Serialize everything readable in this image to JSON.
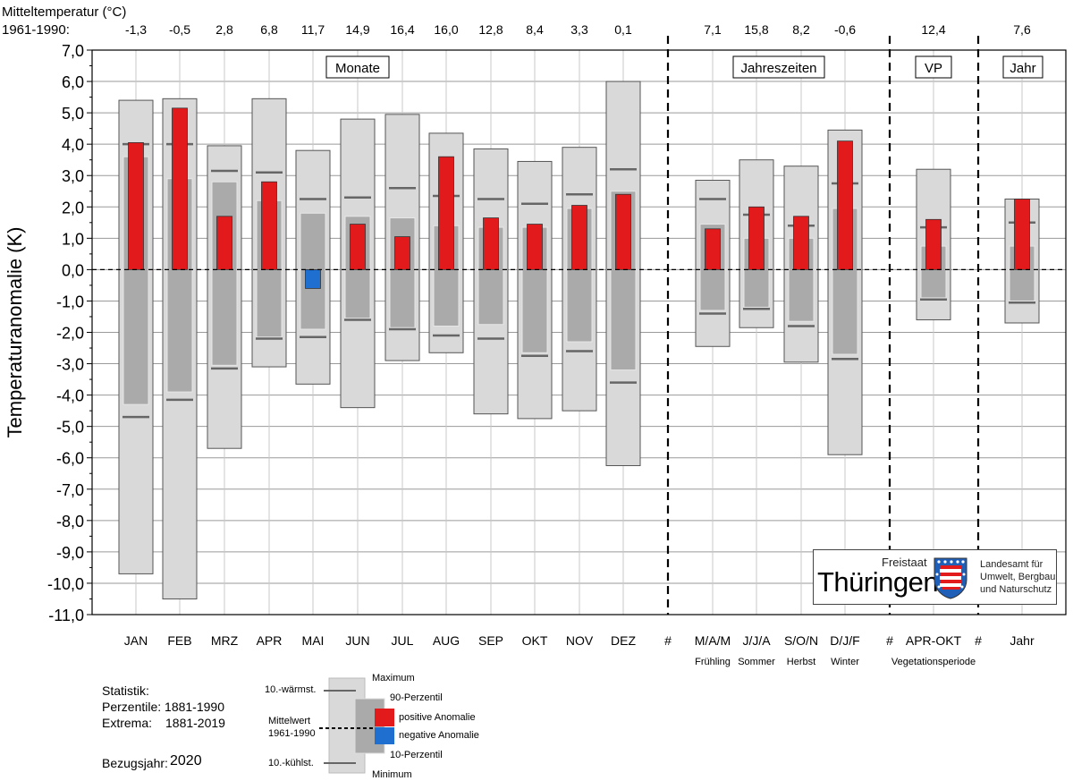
{
  "chart_data": {
    "type": "bar",
    "ylabel": "Temperaturanomalie (K)",
    "ylim": [
      -11.0,
      7.0
    ],
    "yticks": [
      "7,0",
      "6,0",
      "5,0",
      "4,0",
      "3,0",
      "2,0",
      "1,0",
      "0,0",
      "-1,0",
      "-2,0",
      "-3,0",
      "-4,0",
      "-5,0",
      "-6,0",
      "-7,0",
      "-8,0",
      "-9,0",
      "-10,0",
      "-11,0"
    ],
    "grid": true,
    "mean_header": "Mitteltemperatur (°C)",
    "mean_period": "1961-1990:",
    "sections": [
      "Monate",
      "Jahreszeiten",
      "VP",
      "Jahr"
    ],
    "separator_label": "#",
    "categories": [
      {
        "label": "JAN",
        "sub": "",
        "mean": "-1,3",
        "max": 5.4,
        "min": -9.7,
        "p90": 3.6,
        "p10": -4.3,
        "warm10": 4.0,
        "cold10": -4.7,
        "anomaly": 4.05
      },
      {
        "label": "FEB",
        "sub": "",
        "mean": "-0,5",
        "max": 5.45,
        "min": -10.5,
        "p90": 2.9,
        "p10": -3.9,
        "warm10": 4.0,
        "cold10": -4.15,
        "anomaly": 5.15
      },
      {
        "label": "MRZ",
        "sub": "",
        "mean": "2,8",
        "max": 3.95,
        "min": -5.7,
        "p90": 2.8,
        "p10": -3.05,
        "warm10": 3.15,
        "cold10": -3.15,
        "anomaly": 1.7
      },
      {
        "label": "APR",
        "sub": "",
        "mean": "6,8",
        "max": 5.45,
        "min": -3.1,
        "p90": 2.2,
        "p10": -2.15,
        "warm10": 3.1,
        "cold10": -2.2,
        "anomaly": 2.8
      },
      {
        "label": "MAI",
        "sub": "",
        "mean": "11,7",
        "max": 3.8,
        "min": -3.65,
        "p90": 1.8,
        "p10": -1.9,
        "warm10": 2.25,
        "cold10": -2.15,
        "anomaly": -0.6
      },
      {
        "label": "JUN",
        "sub": "",
        "mean": "14,9",
        "max": 4.8,
        "min": -4.4,
        "p90": 1.7,
        "p10": -1.55,
        "warm10": 2.3,
        "cold10": -1.6,
        "anomaly": 1.45
      },
      {
        "label": "JUL",
        "sub": "",
        "mean": "16,4",
        "max": 4.95,
        "min": -2.9,
        "p90": 1.65,
        "p10": -1.85,
        "warm10": 2.6,
        "cold10": -1.9,
        "anomaly": 1.05
      },
      {
        "label": "AUG",
        "sub": "",
        "mean": "16,0",
        "max": 4.35,
        "min": -2.65,
        "p90": 1.4,
        "p10": -1.8,
        "warm10": 2.35,
        "cold10": -2.1,
        "anomaly": 3.6
      },
      {
        "label": "SEP",
        "sub": "",
        "mean": "12,8",
        "max": 3.85,
        "min": -4.6,
        "p90": 1.35,
        "p10": -1.75,
        "warm10": 2.25,
        "cold10": -2.2,
        "anomaly": 1.65
      },
      {
        "label": "OKT",
        "sub": "",
        "mean": "8,4",
        "max": 3.45,
        "min": -4.75,
        "p90": 1.35,
        "p10": -2.65,
        "warm10": 2.1,
        "cold10": -2.75,
        "anomaly": 1.45
      },
      {
        "label": "NOV",
        "sub": "",
        "mean": "3,3",
        "max": 3.9,
        "min": -4.5,
        "p90": 1.95,
        "p10": -2.3,
        "warm10": 2.4,
        "cold10": -2.6,
        "anomaly": 2.05
      },
      {
        "label": "DEZ",
        "sub": "",
        "mean": "0,1",
        "max": 6.0,
        "min": -6.25,
        "p90": 2.5,
        "p10": -3.2,
        "warm10": 3.2,
        "cold10": -3.6,
        "anomaly": 2.4
      },
      {
        "label": "M/A/M",
        "sub": "Frühling",
        "mean": "7,1",
        "max": 2.85,
        "min": -2.45,
        "p90": 1.45,
        "p10": -1.3,
        "warm10": 2.25,
        "cold10": -1.4,
        "anomaly": 1.3
      },
      {
        "label": "J/J/A",
        "sub": "Sommer",
        "mean": "15,8",
        "max": 3.5,
        "min": -1.85,
        "p90": 1.0,
        "p10": -1.2,
        "warm10": 1.75,
        "cold10": -1.25,
        "anomaly": 2.0
      },
      {
        "label": "S/O/N",
        "sub": "Herbst",
        "mean": "8,2",
        "max": 3.3,
        "min": -2.95,
        "p90": 1.0,
        "p10": -1.65,
        "warm10": 1.4,
        "cold10": -1.8,
        "anomaly": 1.7
      },
      {
        "label": "D/J/F",
        "sub": "Winter",
        "mean": "-0,6",
        "max": 4.45,
        "min": -5.9,
        "p90": 1.95,
        "p10": -2.7,
        "warm10": 2.75,
        "cold10": -2.85,
        "anomaly": 4.1
      },
      {
        "label": "APR-OKT",
        "sub": "Vegetationsperiode",
        "mean": "12,4",
        "max": 3.2,
        "min": -1.6,
        "p90": 0.75,
        "p10": -0.9,
        "warm10": 1.35,
        "cold10": -0.95,
        "anomaly": 1.6
      },
      {
        "label": "Jahr",
        "sub": "",
        "mean": "7,6",
        "max": 2.25,
        "min": -1.7,
        "p90": 0.75,
        "p10": -1.0,
        "warm10": 1.5,
        "cold10": -1.05,
        "anomaly": 2.25
      }
    ],
    "colors": {
      "positive": "#e31a1c",
      "negative": "#1f6fd1",
      "extrema_box": "#d9d9d9",
      "percentile_box": "#aaaaaa",
      "rank_line": "#666666"
    }
  },
  "statistics": {
    "title": "Statistik:",
    "percentiles": "Perzentile: 1881-1990",
    "extrema_label": "Extrema:",
    "extrema_period": "1881-2019",
    "reference_label": "Bezugsjahr:",
    "reference_year": "2020"
  },
  "legend": {
    "maximum": "Maximum",
    "warmest10": "10.-wärmst.",
    "p90": "90-Perzentil",
    "mean_line1": "Mittelwert",
    "mean_line2": "1961-1990",
    "positive": "positive Anomalie",
    "negative": "negative Anomalie",
    "p10": "10-Perzentil",
    "coldest10": "10.-kühlst.",
    "minimum": "Minimum"
  },
  "logo": {
    "state_small": "Freistaat",
    "state_big": "Thüringen",
    "institute_line1": "Landesamt für",
    "institute_line2": "Umwelt, Bergbau",
    "institute_line3": "und Naturschutz",
    "crest_icon": "coat-of-arms-icon"
  }
}
